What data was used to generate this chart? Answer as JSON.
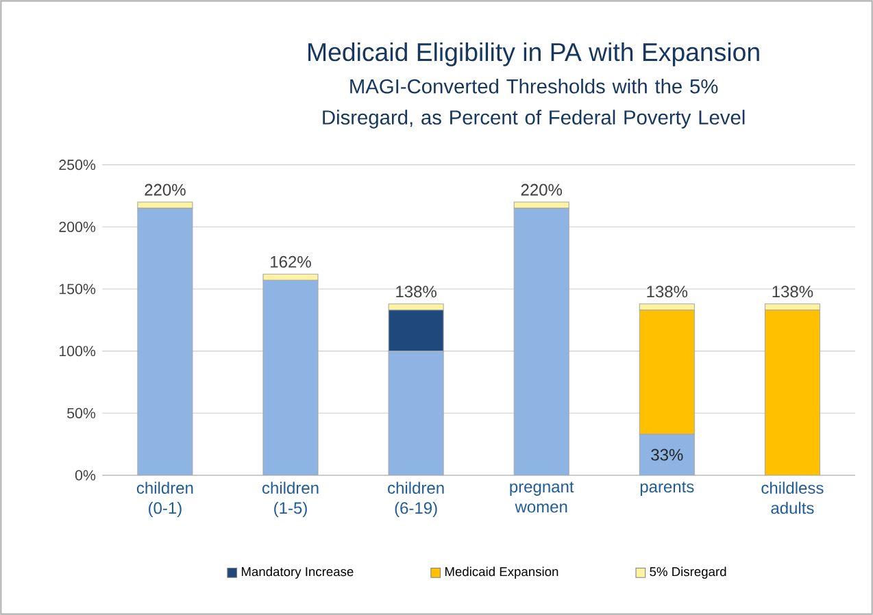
{
  "chart_data": {
    "type": "bar",
    "stacked": true,
    "title": "Medicaid Eligibility in PA with Expansion",
    "subtitle": "MAGI-Converted Thresholds with the 5% Disregard, as Percent of Federal Poverty Level",
    "categories": [
      "children (0-1)",
      "children (1-5)",
      "children (6-19)",
      "pregnant women",
      "parents",
      "childless adults"
    ],
    "series": [
      {
        "color": "#8eb4e3",
        "values": [
          215,
          157,
          100,
          215,
          33,
          0
        ],
        "value_labels": [
          null,
          null,
          null,
          null,
          "33%",
          null
        ]
      },
      {
        "name": "Mandatory Increase",
        "color": "#1f497d",
        "values": [
          0,
          0,
          33,
          0,
          0,
          0
        ]
      },
      {
        "name": "Medicaid Expansion",
        "color": "#ffc000",
        "values": [
          0,
          0,
          0,
          0,
          100,
          133
        ]
      },
      {
        "name": "5% Disregard",
        "color": "#fff2a0",
        "values": [
          5,
          5,
          5,
          5,
          5,
          5
        ]
      }
    ],
    "totals": [
      "220%",
      "162%",
      "138%",
      "220%",
      "138%",
      "138%"
    ],
    "ylim": [
      0,
      250
    ],
    "yticks": [
      {
        "value": 0,
        "label": "0%"
      },
      {
        "value": 50,
        "label": "50%"
      },
      {
        "value": 100,
        "label": "100%"
      },
      {
        "value": 150,
        "label": "150%"
      },
      {
        "value": 200,
        "label": "200%"
      },
      {
        "value": 250,
        "label": "250%"
      }
    ],
    "grid": "y",
    "legend": "bottom"
  }
}
